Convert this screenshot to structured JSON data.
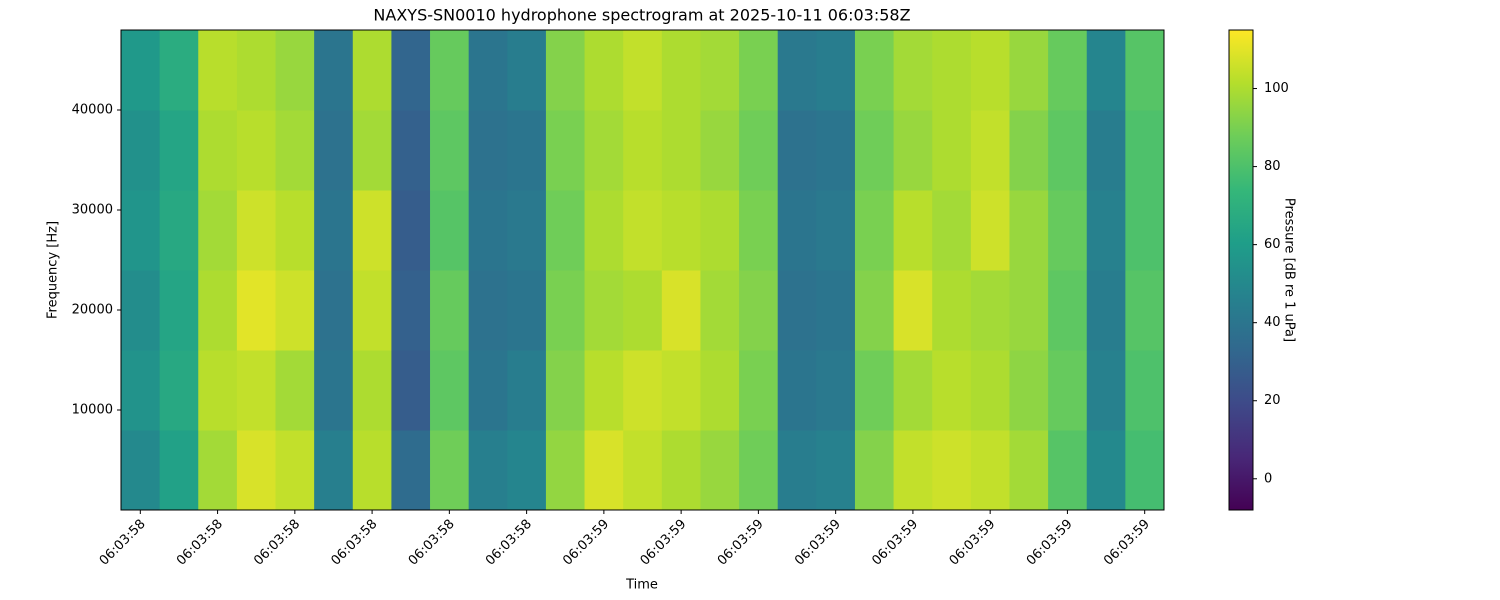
{
  "chart_data": {
    "type": "heatmap",
    "title": "NAXYS-SN0010 hydrophone spectrogram at 2025-10-11 06:03:58Z",
    "xlabel": "Time",
    "ylabel": "Frequency [Hz]",
    "colorbar_label": "Pressure [dB re 1 uPa]",
    "colormap": "viridis",
    "xlim": [
      -0.25,
      13.25
    ],
    "xticks": [
      {
        "value": 0,
        "label": "06:03:58"
      },
      {
        "value": 1,
        "label": "06:03:58"
      },
      {
        "value": 2,
        "label": "06:03:58"
      },
      {
        "value": 3,
        "label": "06:03:58"
      },
      {
        "value": 4,
        "label": "06:03:58"
      },
      {
        "value": 5,
        "label": "06:03:58"
      },
      {
        "value": 6,
        "label": "06:03:59"
      },
      {
        "value": 7,
        "label": "06:03:59"
      },
      {
        "value": 8,
        "label": "06:03:59"
      },
      {
        "value": 9,
        "label": "06:03:59"
      },
      {
        "value": 10,
        "label": "06:03:59"
      },
      {
        "value": 11,
        "label": "06:03:59"
      },
      {
        "value": 12,
        "label": "06:03:59"
      },
      {
        "value": 13,
        "label": "06:03:59"
      }
    ],
    "ylim": [
      0,
      48000
    ],
    "yticks": [
      10000,
      20000,
      30000,
      40000
    ],
    "clim": [
      -8,
      115
    ],
    "cticks": [
      0,
      20,
      40,
      60,
      80,
      100
    ],
    "x_edges": [
      -0.25,
      0.25,
      0.75,
      1.25,
      1.75,
      2.25,
      2.75,
      3.25,
      3.75,
      4.25,
      4.75,
      5.25,
      5.75,
      6.25,
      6.75,
      7.25,
      7.75,
      8.25,
      8.75,
      9.25,
      9.75,
      10.25,
      10.75,
      11.25,
      11.75,
      12.25,
      12.75,
      13.25
    ],
    "y_edges": [
      0,
      8000,
      16000,
      24000,
      32000,
      40000,
      48000
    ],
    "z": [
      [
        50,
        62,
        98,
        108,
        104,
        45,
        102,
        35,
        88,
        45,
        48,
        95,
        108,
        104,
        100,
        96,
        88,
        44,
        46,
        92,
        104,
        106,
        104,
        98,
        82,
        50,
        78
      ],
      [
        55,
        66,
        102,
        104,
        98,
        40,
        100,
        28,
        84,
        40,
        44,
        92,
        102,
        106,
        104,
        100,
        90,
        40,
        42,
        88,
        98,
        102,
        100,
        94,
        86,
        46,
        80
      ],
      [
        52,
        64,
        100,
        110,
        106,
        38,
        104,
        30,
        86,
        38,
        40,
        90,
        98,
        100,
        108,
        98,
        92,
        38,
        40,
        92,
        108,
        100,
        98,
        96,
        84,
        44,
        82
      ],
      [
        56,
        66,
        98,
        106,
        102,
        40,
        106,
        28,
        82,
        40,
        42,
        88,
        100,
        104,
        102,
        100,
        90,
        40,
        42,
        90,
        102,
        98,
        106,
        96,
        86,
        46,
        80
      ],
      [
        54,
        64,
        100,
        102,
        98,
        38,
        98,
        30,
        84,
        38,
        40,
        90,
        98,
        102,
        100,
        96,
        88,
        38,
        40,
        88,
        96,
        100,
        104,
        92,
        84,
        44,
        80
      ],
      [
        58,
        68,
        102,
        100,
        96,
        40,
        100,
        32,
        86,
        40,
        44,
        92,
        100,
        104,
        100,
        98,
        90,
        42,
        44,
        90,
        98,
        100,
        102,
        96,
        86,
        48,
        82
      ]
    ]
  }
}
